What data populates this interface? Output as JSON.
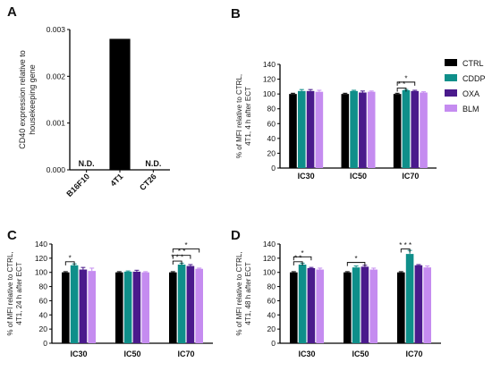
{
  "colors": {
    "CTRL": "#000000",
    "CDDP": "#0f8f8a",
    "OXA": "#4a1a8c",
    "BLM": "#c58cf0",
    "4T1": "#000000"
  },
  "legend": {
    "placement": "right",
    "entries": [
      "CTRL",
      "CDDP",
      "OXA",
      "BLM"
    ]
  },
  "chart_data": [
    {
      "panel": "A",
      "type": "bar",
      "ylabel": "CD40 expression relative to housekeeping gene",
      "ylim": [
        0,
        0.003
      ],
      "yticks": [
        "0.000",
        "0.001",
        "0.002",
        "0.003"
      ],
      "categories": [
        "B16F10",
        "4T1",
        "CT26"
      ],
      "values": [
        0,
        0.0028,
        0
      ],
      "annotations": [
        "N.D.",
        "",
        "N.D."
      ]
    },
    {
      "panel": "B",
      "type": "bar",
      "ylabel": "% of MFI relative to CTRL, 4T1, 4 h after ECT",
      "ylabel_lines": [
        "% of MFI relative to CTRL,",
        "4T1, 4 h after ECT"
      ],
      "ylim": [
        0,
        140
      ],
      "yticks": [
        "0",
        "20",
        "40",
        "60",
        "80",
        "100",
        "120",
        "140"
      ],
      "categories": [
        "IC30",
        "IC50",
        "IC70"
      ],
      "series": [
        {
          "name": "CTRL",
          "values": [
            100,
            100,
            100
          ],
          "err": [
            1,
            1,
            1
          ]
        },
        {
          "name": "CDDP",
          "values": [
            104,
            104,
            105
          ],
          "err": [
            2,
            1,
            1
          ]
        },
        {
          "name": "OXA",
          "values": [
            104,
            102,
            104
          ],
          "err": [
            2,
            2,
            1
          ]
        },
        {
          "name": "BLM",
          "values": [
            103,
            103,
            102
          ],
          "err": [
            2,
            1,
            1
          ]
        }
      ],
      "significance": [
        {
          "category": "IC70",
          "from": "CTRL",
          "to": "CDDP",
          "label": "* *",
          "y": 108
        },
        {
          "category": "IC70",
          "from": "CTRL",
          "to": "OXA",
          "label": "*",
          "y": 116
        }
      ]
    },
    {
      "panel": "C",
      "type": "bar",
      "ylabel": "% of MFI relative to CTRL, 4T1, 24 h after ECT",
      "ylabel_lines": [
        "% of MFI relative to CTRL,",
        "4T1, 24 h after ECT"
      ],
      "ylim": [
        0,
        140
      ],
      "yticks": [
        "0",
        "20",
        "40",
        "60",
        "80",
        "100",
        "120",
        "140"
      ],
      "categories": [
        "IC30",
        "IC50",
        "IC70"
      ],
      "series": [
        {
          "name": "CTRL",
          "values": [
            100,
            100,
            100
          ],
          "err": [
            1,
            1,
            1
          ]
        },
        {
          "name": "CDDP",
          "values": [
            110,
            101,
            111
          ],
          "err": [
            2,
            1,
            2
          ]
        },
        {
          "name": "OXA",
          "values": [
            104,
            101,
            109
          ],
          "err": [
            3,
            2,
            2
          ]
        },
        {
          "name": "BLM",
          "values": [
            102,
            100,
            105
          ],
          "err": [
            4,
            1,
            1
          ]
        }
      ],
      "significance": [
        {
          "category": "IC30",
          "from": "CTRL",
          "to": "CDDP",
          "label": "*",
          "y": 115
        },
        {
          "category": "IC70",
          "from": "CTRL",
          "to": "CDDP",
          "label": "* * *",
          "y": 116
        },
        {
          "category": "IC70",
          "from": "CTRL",
          "to": "OXA",
          "label": "* *",
          "y": 124
        },
        {
          "category": "IC70",
          "from": "CTRL",
          "to": "BLM",
          "label": "*",
          "y": 133
        }
      ]
    },
    {
      "panel": "D",
      "type": "bar",
      "ylabel": "% of MFI relative to CTRL, 4T1, 48 h after ECT",
      "ylabel_lines": [
        "% of MFI relative to CTRL,",
        "4T1, 48 h after ECT"
      ],
      "ylim": [
        0,
        140
      ],
      "yticks": [
        "0",
        "20",
        "40",
        "60",
        "80",
        "100",
        "120",
        "140"
      ],
      "categories": [
        "IC30",
        "IC50",
        "IC70"
      ],
      "series": [
        {
          "name": "CTRL",
          "values": [
            100,
            100,
            100
          ],
          "err": [
            1,
            1,
            1
          ]
        },
        {
          "name": "CDDP",
          "values": [
            111,
            107,
            126
          ],
          "err": [
            2,
            2,
            5
          ]
        },
        {
          "name": "OXA",
          "values": [
            106,
            108,
            110
          ],
          "err": [
            1,
            2,
            1
          ]
        },
        {
          "name": "BLM",
          "values": [
            104,
            104,
            107
          ],
          "err": [
            2,
            2,
            2
          ]
        }
      ],
      "significance": [
        {
          "category": "IC30",
          "from": "CTRL",
          "to": "CDDP",
          "label": "* *",
          "y": 115
        },
        {
          "category": "IC30",
          "from": "CTRL",
          "to": "OXA",
          "label": "*",
          "y": 122
        },
        {
          "category": "IC50",
          "from": "CTRL",
          "to": "OXA",
          "label": "*",
          "y": 114
        },
        {
          "category": "IC70",
          "from": "CTRL",
          "to": "CDDP",
          "label": "* * *",
          "y": 133
        }
      ]
    }
  ]
}
